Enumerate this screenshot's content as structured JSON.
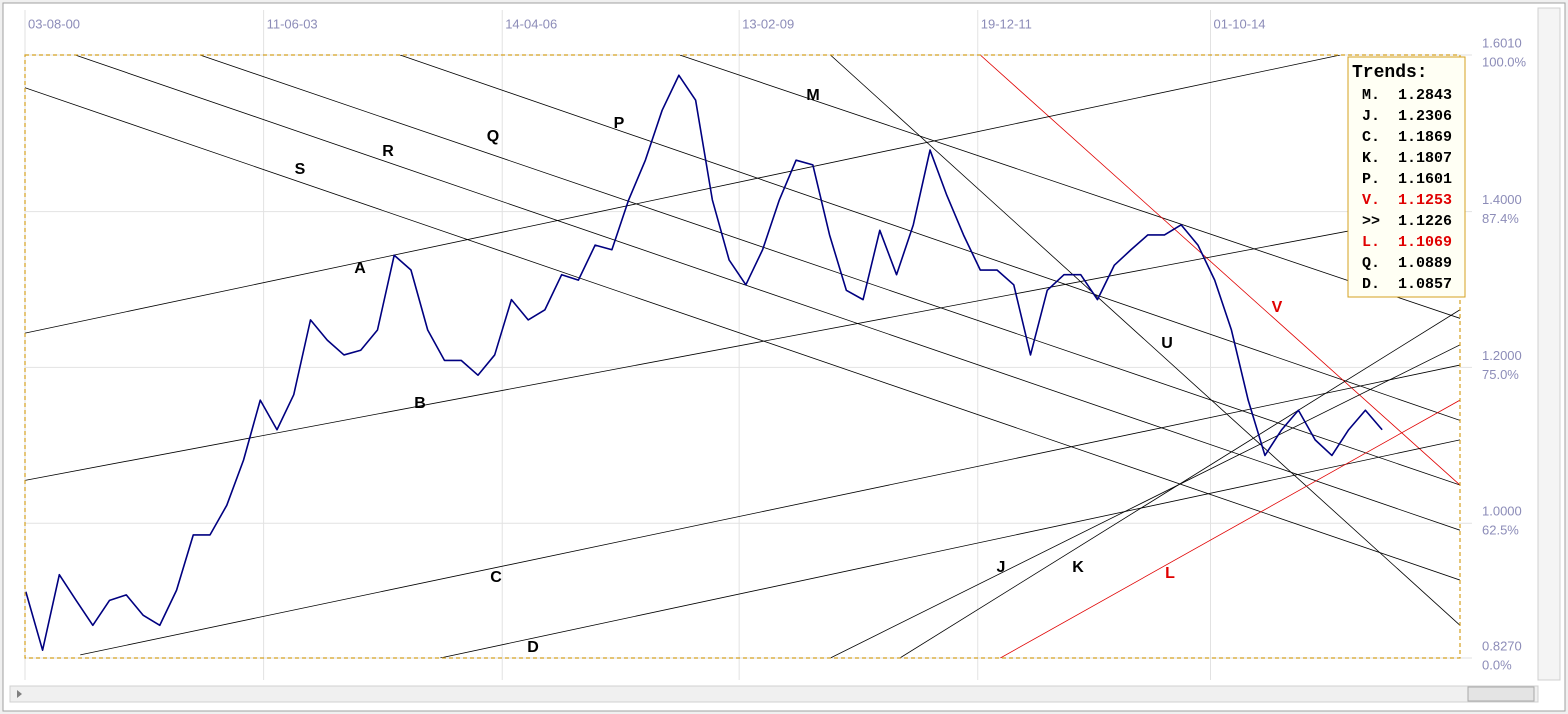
{
  "chart_data": {
    "type": "line",
    "xlim": [
      2000.59,
      2017.73
    ],
    "ylim": [
      0.827,
      1.601
    ],
    "xticks": [
      {
        "value": 2000.59,
        "label": "03-08-00"
      },
      {
        "value": 2003.44,
        "label": "11-06-03"
      },
      {
        "value": 2006.29,
        "label": "14-04-06"
      },
      {
        "value": 2009.12,
        "label": "13-02-09"
      },
      {
        "value": 2011.97,
        "label": "19-12-11"
      },
      {
        "value": 2014.75,
        "label": "01-10-14"
      }
    ],
    "yticks": [
      {
        "value": 1.601,
        "label": "1.6010"
      },
      {
        "value": 1.4,
        "label": "1.4000"
      },
      {
        "value": 1.2,
        "label": "1.2000"
      },
      {
        "value": 1.0,
        "label": "1.0000"
      },
      {
        "value": 0.827,
        "label": "0.8270"
      }
    ],
    "ytick_percent_labels": [
      "100.0%",
      "87.4%",
      "75.0%",
      "62.5%",
      "0.0%"
    ],
    "grid": true,
    "x": [
      2000.6,
      2000.8,
      2001,
      2001.2,
      2001.4,
      2001.6,
      2001.8,
      2002,
      2002.2,
      2002.4,
      2002.6,
      2002.8,
      2003,
      2003.2,
      2003.4,
      2003.6,
      2003.8,
      2004,
      2004.2,
      2004.4,
      2004.6,
      2004.8,
      2005,
      2005.2,
      2005.4,
      2005.6,
      2005.8,
      2006,
      2006.2,
      2006.4,
      2006.6,
      2006.8,
      2007,
      2007.2,
      2007.4,
      2007.6,
      2007.8,
      2008,
      2008.2,
      2008.4,
      2008.6,
      2008.8,
      2009,
      2009.2,
      2009.4,
      2009.6,
      2009.8,
      2010,
      2010.2,
      2010.4,
      2010.6,
      2010.8,
      2011,
      2011.2,
      2011.4,
      2011.6,
      2011.8,
      2012,
      2012.2,
      2012.4,
      2012.6,
      2012.8,
      2013,
      2013.2,
      2013.4,
      2013.6,
      2013.8,
      2014,
      2014.2,
      2014.4,
      2014.6,
      2014.8,
      2015,
      2015.2,
      2015.4,
      2015.6,
      2015.8,
      2016,
      2016.2,
      2016.4,
      2016.6,
      2016.8
    ],
    "series": [
      {
        "color": "#000080",
        "values": [
          0.912,
          0.837,
          0.934,
          0.901,
          0.869,
          0.901,
          0.908,
          0.882,
          0.869,
          0.914,
          0.985,
          0.985,
          1.023,
          1.081,
          1.158,
          1.12,
          1.165,
          1.261,
          1.235,
          1.216,
          1.222,
          1.248,
          1.344,
          1.325,
          1.248,
          1.209,
          1.209,
          1.19,
          1.216,
          1.287,
          1.261,
          1.274,
          1.319,
          1.312,
          1.357,
          1.351,
          1.415,
          1.466,
          1.53,
          1.575,
          1.543,
          1.415,
          1.338,
          1.306,
          1.351,
          1.415,
          1.466,
          1.46,
          1.37,
          1.299,
          1.287,
          1.376,
          1.319,
          1.383,
          1.479,
          1.421,
          1.37,
          1.325,
          1.325,
          1.306,
          1.216,
          1.299,
          1.319,
          1.319,
          1.287,
          1.331,
          1.351,
          1.37,
          1.37,
          1.383,
          1.357,
          1.312,
          1.248,
          1.158,
          1.087,
          1.12,
          1.145,
          1.107,
          1.087,
          1.12,
          1.145,
          1.12
        ]
      }
    ],
    "trendlines": [
      {
        "label": "M",
        "color": "#000000",
        "x": [
          2008.41,
          2017.73
        ],
        "y": [
          1.601,
          1.263
        ]
      },
      {
        "label": "P",
        "color": "#000000",
        "x": [
          2005.07,
          2017.73
        ],
        "y": [
          1.601,
          1.132
        ]
      },
      {
        "label": "Q",
        "color": "#000000",
        "x": [
          2002.68,
          2017.73
        ],
        "y": [
          1.601,
          1.049
        ]
      },
      {
        "label": "R",
        "color": "#000000",
        "x": [
          2001.19,
          2017.73
        ],
        "y": [
          1.601,
          0.991
        ]
      },
      {
        "label": "S",
        "color": "#000000",
        "x": [
          2000.59,
          2017.73
        ],
        "y": [
          1.559,
          0.927
        ]
      },
      {
        "label": "U",
        "color": "#000000",
        "x": [
          2010.21,
          2017.73
        ],
        "y": [
          1.601,
          0.869
        ]
      },
      {
        "label": "V",
        "color": "#e00000",
        "x": [
          2012.0,
          2017.73
        ],
        "y": [
          1.601,
          1.049
        ]
      },
      {
        "label": "A",
        "color": "#000000",
        "x": [
          2000.59,
          2016.3
        ],
        "y": [
          1.244,
          1.601
        ]
      },
      {
        "label": "B",
        "color": "#000000",
        "x": [
          2000.59,
          2017.73
        ],
        "y": [
          1.055,
          1.402
        ]
      },
      {
        "label": "C",
        "color": "#000000",
        "x": [
          2001.25,
          2017.73
        ],
        "y": [
          0.831,
          1.203
        ]
      },
      {
        "label": "D",
        "color": "#000000",
        "x": [
          2005.55,
          2017.73
        ],
        "y": [
          0.827,
          1.107
        ]
      },
      {
        "label": "J",
        "color": "#000000",
        "x": [
          2010.21,
          2017.73
        ],
        "y": [
          0.827,
          1.229
        ]
      },
      {
        "label": "K",
        "color": "#000000",
        "x": [
          2011.04,
          2017.73
        ],
        "y": [
          0.827,
          1.274
        ]
      },
      {
        "label": "L",
        "color": "#e00000",
        "x": [
          2012.24,
          2017.73
        ],
        "y": [
          0.827,
          1.158
        ]
      }
    ],
    "trends_box": {
      "title": "Trends:",
      "items": [
        {
          "name": "M.",
          "value": 1.2843,
          "color": "#000000"
        },
        {
          "name": "J.",
          "value": 1.2306,
          "color": "#000000"
        },
        {
          "name": "C.",
          "value": 1.1869,
          "color": "#000000"
        },
        {
          "name": "K.",
          "value": 1.1807,
          "color": "#000000"
        },
        {
          "name": "P.",
          "value": 1.1601,
          "color": "#000000"
        },
        {
          "name": "V.",
          "value": 1.1253,
          "color": "#e00000"
        },
        {
          "name": ">>",
          "value": 1.1226,
          "color": "#000000"
        },
        {
          "name": "L.",
          "value": 1.1069,
          "color": "#e00000"
        },
        {
          "name": "Q.",
          "value": 1.0889,
          "color": "#000000"
        },
        {
          "name": "D.",
          "value": 1.0857,
          "color": "#000000"
        }
      ]
    }
  }
}
